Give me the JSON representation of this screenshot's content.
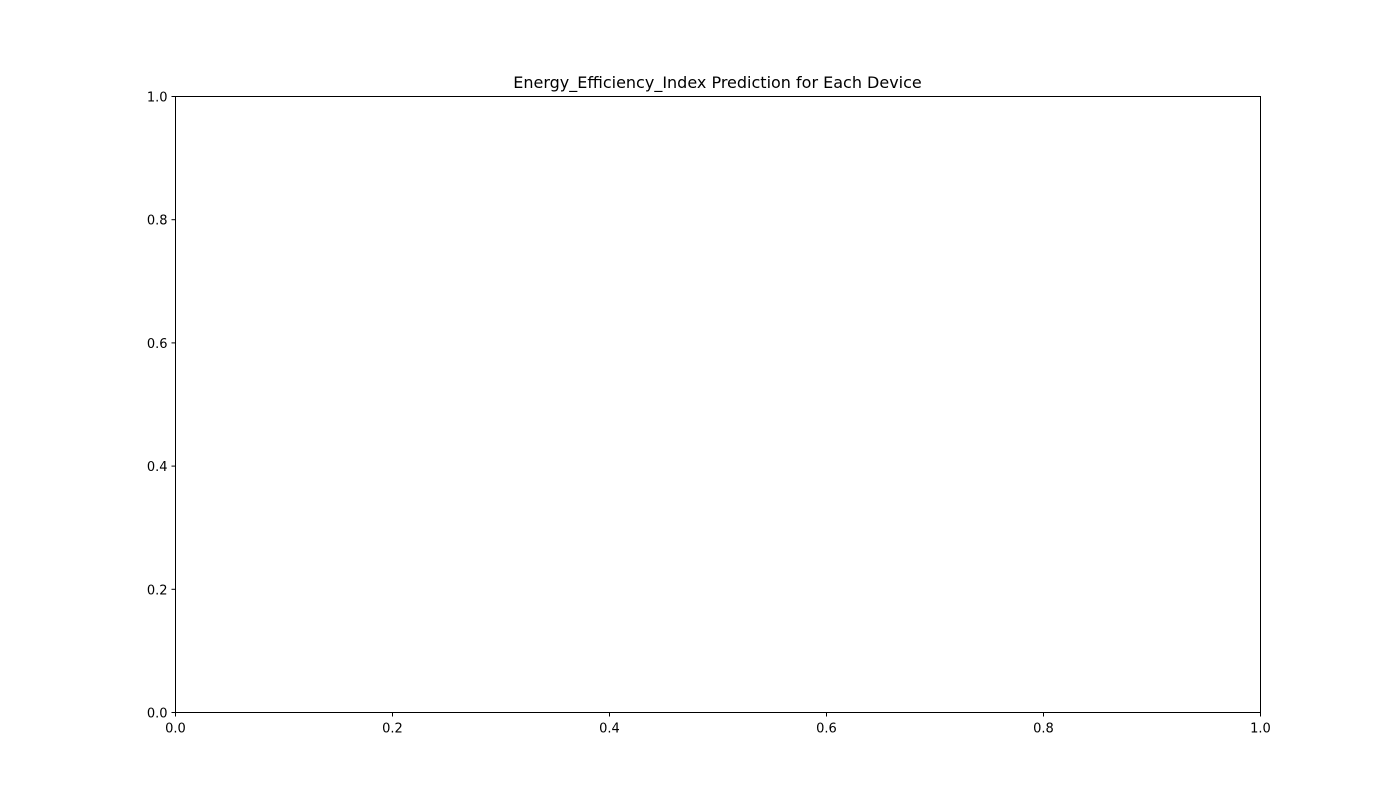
{
  "chart_data": {
    "type": "line",
    "title": "Energy_Efficiency_Index Prediction for Each Device",
    "xlabel": "",
    "ylabel": "",
    "xlim": [
      0,
      1
    ],
    "ylim": [
      0,
      1
    ],
    "x_ticks": [
      "0.0",
      "0.2",
      "0.4",
      "0.6",
      "0.8",
      "1.0"
    ],
    "y_ticks": [
      "0.0",
      "0.2",
      "0.4",
      "0.6",
      "0.8",
      "1.0"
    ],
    "series": [],
    "grid": false,
    "legend": "none"
  },
  "colors": {
    "background": "#ffffff",
    "axes": "#000000",
    "text": "#000000"
  }
}
